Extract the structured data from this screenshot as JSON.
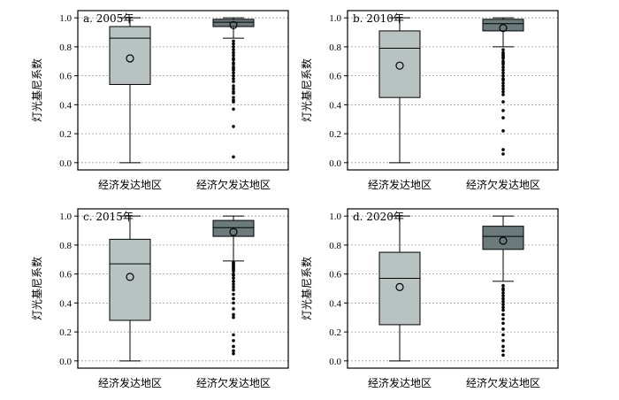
{
  "chart_data": [
    {
      "type": "box",
      "title": "a. 2005年",
      "ylabel": "灯光基尼系数",
      "ylim": [
        -0.05,
        1.05
      ],
      "yticks": [
        "0.0",
        "0.2",
        "0.4",
        "0.6",
        "0.8",
        "1.0"
      ],
      "grid": true,
      "categories": [
        "经济发达地区",
        "经济欠发达地区"
      ],
      "boxes": [
        {
          "name": "经济发达地区",
          "min": 0.0,
          "q1": 0.54,
          "median": 0.86,
          "q3": 0.94,
          "max": 1.0,
          "mean": 0.72,
          "fill": "#b8c2c0",
          "outliers": []
        },
        {
          "name": "经济欠发达地区",
          "min": 0.86,
          "q1": 0.94,
          "median": 0.97,
          "q3": 0.99,
          "max": 1.0,
          "mean": 0.95,
          "fill": "#6b7a7b",
          "outliers": [
            0.84,
            0.82,
            0.8,
            0.78,
            0.76,
            0.74,
            0.72,
            0.71,
            0.69,
            0.68,
            0.66,
            0.65,
            0.64,
            0.62,
            0.6,
            0.58,
            0.56,
            0.53,
            0.51,
            0.49,
            0.48,
            0.45,
            0.43,
            0.42,
            0.37,
            0.25,
            0.04
          ]
        }
      ]
    },
    {
      "type": "box",
      "title": "b. 2010年",
      "ylabel": "灯光基尼系数",
      "ylim": [
        -0.05,
        1.05
      ],
      "yticks": [
        "0.0",
        "0.2",
        "0.4",
        "0.6",
        "0.8",
        "1.0"
      ],
      "grid": true,
      "categories": [
        "经济发达地区",
        "经济欠发达地区"
      ],
      "boxes": [
        {
          "name": "经济发达地区",
          "min": 0.0,
          "q1": 0.45,
          "median": 0.79,
          "q3": 0.91,
          "max": 1.0,
          "mean": 0.67,
          "fill": "#b8c2c0",
          "outliers": []
        },
        {
          "name": "经济欠发达地区",
          "min": 0.8,
          "q1": 0.91,
          "median": 0.96,
          "q3": 0.99,
          "max": 1.0,
          "mean": 0.93,
          "fill": "#6b7a7b",
          "outliers": [
            0.78,
            0.76,
            0.75,
            0.74,
            0.73,
            0.72,
            0.7,
            0.69,
            0.68,
            0.66,
            0.64,
            0.62,
            0.6,
            0.58,
            0.57,
            0.55,
            0.53,
            0.51,
            0.49,
            0.47,
            0.42,
            0.36,
            0.31,
            0.22,
            0.09,
            0.06
          ]
        }
      ]
    },
    {
      "type": "box",
      "title": "c. 2015年",
      "ylabel": "灯光基尼系数",
      "ylim": [
        -0.05,
        1.05
      ],
      "yticks": [
        "0.0",
        "0.2",
        "0.4",
        "0.6",
        "0.8",
        "1.0"
      ],
      "grid": true,
      "categories": [
        "经济发达地区",
        "经济欠发达地区"
      ],
      "boxes": [
        {
          "name": "经济发达地区",
          "min": 0.0,
          "q1": 0.28,
          "median": 0.67,
          "q3": 0.84,
          "max": 1.0,
          "mean": 0.58,
          "fill": "#b8c2c0",
          "outliers": []
        },
        {
          "name": "经济欠发达地区",
          "min": 0.69,
          "q1": 0.86,
          "median": 0.92,
          "q3": 0.97,
          "max": 1.0,
          "mean": 0.89,
          "fill": "#6b7a7b",
          "outliers": [
            0.68,
            0.67,
            0.66,
            0.65,
            0.64,
            0.63,
            0.62,
            0.6,
            0.59,
            0.57,
            0.55,
            0.53,
            0.51,
            0.49,
            0.46,
            0.43,
            0.4,
            0.36,
            0.32,
            0.3,
            0.18,
            0.14,
            0.1,
            0.07,
            0.05
          ]
        }
      ]
    },
    {
      "type": "box",
      "title": "d. 2020年",
      "ylabel": "灯光基尼系数",
      "ylim": [
        -0.05,
        1.05
      ],
      "yticks": [
        "0.0",
        "0.2",
        "0.4",
        "0.6",
        "0.8",
        "1.0"
      ],
      "grid": true,
      "categories": [
        "经济发达地区",
        "经济欠发达地区"
      ],
      "boxes": [
        {
          "name": "经济发达地区",
          "min": 0.0,
          "q1": 0.25,
          "median": 0.57,
          "q3": 0.75,
          "max": 1.0,
          "mean": 0.51,
          "fill": "#b8c2c0",
          "outliers": []
        },
        {
          "name": "经济欠发达地区",
          "min": 0.55,
          "q1": 0.77,
          "median": 0.86,
          "q3": 0.93,
          "max": 1.0,
          "mean": 0.83,
          "fill": "#6b7a7b",
          "outliers": [
            0.52,
            0.5,
            0.49,
            0.47,
            0.45,
            0.43,
            0.41,
            0.39,
            0.37,
            0.35,
            0.32,
            0.29,
            0.26,
            0.22,
            0.18,
            0.14,
            0.1,
            0.07,
            0.04
          ]
        }
      ]
    }
  ]
}
